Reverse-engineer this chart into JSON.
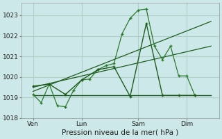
{
  "title": "Pression niveau de la mer( hPa )",
  "bg_color": "#cce8e8",
  "grid_color": "#b0d0c8",
  "line_color_dark": "#1e5c1e",
  "line_color_mid": "#2d7a2d",
  "ylim": [
    1018,
    1023.6
  ],
  "yticks": [
    1018,
    1019,
    1020,
    1021,
    1022,
    1023
  ],
  "xtick_labels": [
    "Ven",
    "Lun",
    "Sam",
    "Dim"
  ],
  "xtick_positions": [
    0.5,
    3.5,
    7.0,
    10.0
  ],
  "vline_positions": [
    0.5,
    3.5,
    7.0,
    10.0
  ],
  "xlim": [
    -0.2,
    12.0
  ],
  "series1_x": [
    0.5,
    1.0,
    1.5,
    2.0,
    2.5,
    3.0,
    3.5,
    4.0,
    4.5,
    5.0,
    5.5,
    6.0,
    6.5,
    7.0,
    7.5,
    8.0,
    8.5,
    9.0,
    9.5,
    10.0,
    10.5
  ],
  "series1_y": [
    1019.15,
    1018.75,
    1019.65,
    1018.6,
    1018.55,
    1019.35,
    1019.85,
    1019.9,
    1020.35,
    1020.55,
    1020.65,
    1022.1,
    1022.85,
    1023.25,
    1023.3,
    1021.5,
    1020.85,
    1021.5,
    1020.05,
    1020.05,
    1019.1
  ],
  "series2_x": [
    0.5,
    1.5,
    2.5,
    3.5,
    4.5,
    5.5,
    6.5,
    7.5,
    8.5,
    9.5,
    10.5
  ],
  "series2_y": [
    1019.55,
    1019.65,
    1019.15,
    1019.85,
    1020.35,
    1020.5,
    1019.05,
    1022.6,
    1019.1,
    1019.1,
    1019.1
  ],
  "trend1_x": [
    0.5,
    11.5
  ],
  "trend1_y": [
    1019.3,
    1022.7
  ],
  "trend2_x": [
    0.5,
    11.5
  ],
  "trend2_y": [
    1019.5,
    1021.5
  ],
  "flat_line_x": [
    0.5,
    11.5
  ],
  "flat_line_y": [
    1019.1,
    1019.1
  ]
}
